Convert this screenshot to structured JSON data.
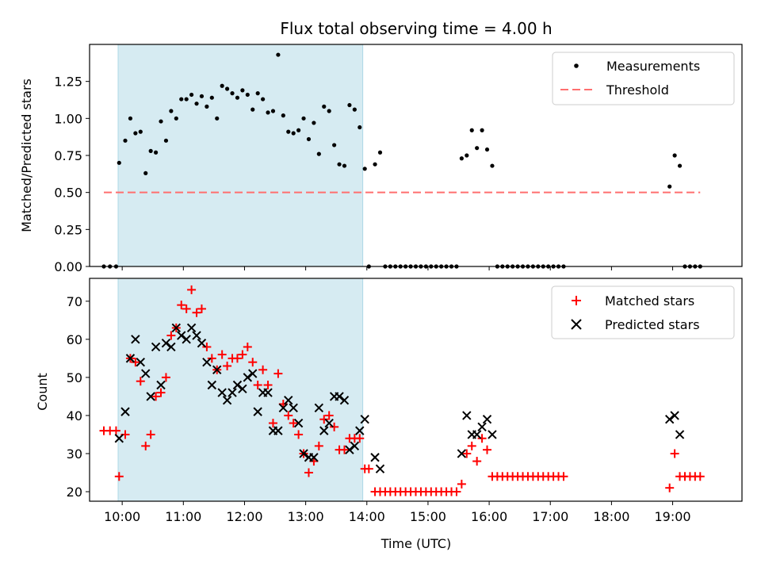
{
  "chart_data": [
    {
      "type": "scatter",
      "title": "Flux total observing time = 4.00 h",
      "xlabel": "",
      "ylabel": "Matched/Predicted stars",
      "xlim": [
        "09:28",
        "20:08"
      ],
      "ylim": [
        0,
        1.5
      ],
      "grid": false,
      "legend": {
        "placement": "top-right",
        "entries": [
          "Measurements",
          "Threshold"
        ]
      },
      "shaded_interval": {
        "start": "09:56",
        "end": "13:56",
        "color": "#add8e6"
      },
      "yticks": [
        "0.00",
        "0.25",
        "0.50",
        "0.75",
        "1.00",
        "1.25"
      ],
      "threshold": {
        "name": "Threshold",
        "y": 0.5,
        "x": [
          "09:42",
          "19:27"
        ],
        "color": "#ff6f6f"
      },
      "series": [
        {
          "name": "Measurements",
          "color": "#000000",
          "marker": "dot",
          "points": [
            [
              "09:42",
              0
            ],
            [
              "09:48",
              0
            ],
            [
              "09:54",
              0
            ],
            [
              "09:57",
              0.7
            ],
            [
              "10:03",
              0.85
            ],
            [
              "10:08",
              1.0
            ],
            [
              "10:13",
              0.9
            ],
            [
              "10:18",
              0.91
            ],
            [
              "10:23",
              0.63
            ],
            [
              "10:28",
              0.78
            ],
            [
              "10:33",
              0.77
            ],
            [
              "10:38",
              0.98
            ],
            [
              "10:43",
              0.85
            ],
            [
              "10:48",
              1.05
            ],
            [
              "10:53",
              1.0
            ],
            [
              "10:58",
              1.13
            ],
            [
              "11:03",
              1.13
            ],
            [
              "11:08",
              1.16
            ],
            [
              "11:13",
              1.1
            ],
            [
              "11:18",
              1.15
            ],
            [
              "11:23",
              1.08
            ],
            [
              "11:28",
              1.14
            ],
            [
              "11:33",
              1.0
            ],
            [
              "11:38",
              1.22
            ],
            [
              "11:43",
              1.2
            ],
            [
              "11:48",
              1.17
            ],
            [
              "11:53",
              1.14
            ],
            [
              "11:58",
              1.19
            ],
            [
              "12:03",
              1.16
            ],
            [
              "12:08",
              1.06
            ],
            [
              "12:13",
              1.17
            ],
            [
              "12:18",
              1.13
            ],
            [
              "12:23",
              1.04
            ],
            [
              "12:28",
              1.05
            ],
            [
              "12:33",
              1.43
            ],
            [
              "12:38",
              1.02
            ],
            [
              "12:43",
              0.91
            ],
            [
              "12:48",
              0.9
            ],
            [
              "12:53",
              0.92
            ],
            [
              "12:58",
              1.0
            ],
            [
              "13:03",
              0.86
            ],
            [
              "13:08",
              0.97
            ],
            [
              "13:13",
              0.76
            ],
            [
              "13:18",
              1.08
            ],
            [
              "13:23",
              1.05
            ],
            [
              "13:28",
              0.82
            ],
            [
              "13:33",
              0.69
            ],
            [
              "13:38",
              0.68
            ],
            [
              "13:43",
              1.09
            ],
            [
              "13:48",
              1.06
            ],
            [
              "13:53",
              0.94
            ],
            [
              "13:58",
              0.66
            ],
            [
              "14:02",
              0
            ],
            [
              "14:08",
              0.69
            ],
            [
              "14:13",
              0.77
            ],
            [
              "14:18",
              0
            ],
            [
              "14:23",
              0
            ],
            [
              "14:28",
              0
            ],
            [
              "14:33",
              0
            ],
            [
              "14:38",
              0
            ],
            [
              "14:43",
              0
            ],
            [
              "14:48",
              0
            ],
            [
              "14:53",
              0
            ],
            [
              "14:58",
              0
            ],
            [
              "15:03",
              0
            ],
            [
              "15:08",
              0
            ],
            [
              "15:13",
              0
            ],
            [
              "15:18",
              0
            ],
            [
              "15:23",
              0
            ],
            [
              "15:28",
              0
            ],
            [
              "15:33",
              0.73
            ],
            [
              "15:38",
              0.75
            ],
            [
              "15:43",
              0.92
            ],
            [
              "15:48",
              0.8
            ],
            [
              "15:53",
              0.92
            ],
            [
              "15:58",
              0.79
            ],
            [
              "16:03",
              0.68
            ],
            [
              "16:08",
              0
            ],
            [
              "16:13",
              0
            ],
            [
              "16:18",
              0
            ],
            [
              "16:23",
              0
            ],
            [
              "16:28",
              0
            ],
            [
              "16:33",
              0
            ],
            [
              "16:38",
              0
            ],
            [
              "16:43",
              0
            ],
            [
              "16:48",
              0
            ],
            [
              "16:53",
              0
            ],
            [
              "16:58",
              0
            ],
            [
              "17:03",
              0
            ],
            [
              "17:08",
              0
            ],
            [
              "17:13",
              0
            ],
            [
              "18:57",
              0.54
            ],
            [
              "19:02",
              0.75
            ],
            [
              "19:07",
              0.68
            ],
            [
              "19:12",
              0
            ],
            [
              "19:17",
              0
            ],
            [
              "19:22",
              0
            ],
            [
              "19:27",
              0
            ]
          ]
        }
      ]
    },
    {
      "type": "scatter",
      "title": "",
      "xlabel": "Time (UTC)",
      "ylabel": "Count",
      "xlim": [
        "09:28",
        "20:08"
      ],
      "ylim": [
        17.5,
        76
      ],
      "grid": false,
      "legend": {
        "placement": "top-right",
        "entries": [
          "Matched stars",
          "Predicted stars"
        ]
      },
      "shaded_interval": {
        "start": "09:56",
        "end": "13:56",
        "color": "#add8e6"
      },
      "xticks": [
        "10:00",
        "11:00",
        "12:00",
        "13:00",
        "14:00",
        "15:00",
        "16:00",
        "17:00",
        "18:00",
        "19:00"
      ],
      "yticks": [
        "20",
        "30",
        "40",
        "50",
        "60",
        "70"
      ],
      "series": [
        {
          "name": "Matched stars",
          "color": "#ff0000",
          "marker": "plus",
          "points": [
            [
              "09:42",
              36
            ],
            [
              "09:48",
              36
            ],
            [
              "09:54",
              36
            ],
            [
              "09:57",
              24
            ],
            [
              "10:03",
              35
            ],
            [
              "10:08",
              55
            ],
            [
              "10:13",
              54
            ],
            [
              "10:18",
              49
            ],
            [
              "10:23",
              32
            ],
            [
              "10:28",
              35
            ],
            [
              "10:33",
              45
            ],
            [
              "10:38",
              46
            ],
            [
              "10:43",
              50
            ],
            [
              "10:48",
              61
            ],
            [
              "10:53",
              63
            ],
            [
              "10:58",
              69
            ],
            [
              "11:03",
              68
            ],
            [
              "11:08",
              73
            ],
            [
              "11:13",
              67
            ],
            [
              "11:18",
              68
            ],
            [
              "11:23",
              58
            ],
            [
              "11:28",
              55
            ],
            [
              "11:33",
              52
            ],
            [
              "11:38",
              56
            ],
            [
              "11:43",
              53
            ],
            [
              "11:48",
              55
            ],
            [
              "11:53",
              55
            ],
            [
              "11:58",
              56
            ],
            [
              "12:03",
              58
            ],
            [
              "12:08",
              54
            ],
            [
              "12:13",
              48
            ],
            [
              "12:18",
              52
            ],
            [
              "12:23",
              48
            ],
            [
              "12:28",
              38
            ],
            [
              "12:33",
              51
            ],
            [
              "12:38",
              43
            ],
            [
              "12:43",
              40
            ],
            [
              "12:48",
              38
            ],
            [
              "12:53",
              35
            ],
            [
              "12:58",
              30
            ],
            [
              "13:03",
              25
            ],
            [
              "13:08",
              28
            ],
            [
              "13:13",
              32
            ],
            [
              "13:18",
              39
            ],
            [
              "13:23",
              40
            ],
            [
              "13:28",
              37
            ],
            [
              "13:33",
              31
            ],
            [
              "13:38",
              31
            ],
            [
              "13:43",
              34
            ],
            [
              "13:48",
              34
            ],
            [
              "13:53",
              34
            ],
            [
              "13:58",
              26
            ],
            [
              "14:02",
              26
            ],
            [
              "14:08",
              20
            ],
            [
              "14:13",
              20
            ],
            [
              "14:18",
              20
            ],
            [
              "14:23",
              20
            ],
            [
              "14:28",
              20
            ],
            [
              "14:33",
              20
            ],
            [
              "14:38",
              20
            ],
            [
              "14:43",
              20
            ],
            [
              "14:48",
              20
            ],
            [
              "14:53",
              20
            ],
            [
              "14:58",
              20
            ],
            [
              "15:03",
              20
            ],
            [
              "15:08",
              20
            ],
            [
              "15:13",
              20
            ],
            [
              "15:18",
              20
            ],
            [
              "15:23",
              20
            ],
            [
              "15:28",
              20
            ],
            [
              "15:33",
              22
            ],
            [
              "15:38",
              30
            ],
            [
              "15:43",
              32
            ],
            [
              "15:48",
              28
            ],
            [
              "15:53",
              34
            ],
            [
              "15:58",
              31
            ],
            [
              "16:03",
              24
            ],
            [
              "16:08",
              24
            ],
            [
              "16:13",
              24
            ],
            [
              "16:18",
              24
            ],
            [
              "16:23",
              24
            ],
            [
              "16:28",
              24
            ],
            [
              "16:33",
              24
            ],
            [
              "16:38",
              24
            ],
            [
              "16:43",
              24
            ],
            [
              "16:48",
              24
            ],
            [
              "16:53",
              24
            ],
            [
              "16:58",
              24
            ],
            [
              "17:03",
              24
            ],
            [
              "17:08",
              24
            ],
            [
              "17:13",
              24
            ],
            [
              "18:57",
              21
            ],
            [
              "19:02",
              30
            ],
            [
              "19:07",
              24
            ],
            [
              "19:12",
              24
            ],
            [
              "19:17",
              24
            ],
            [
              "19:22",
              24
            ],
            [
              "19:27",
              24
            ]
          ]
        },
        {
          "name": "Predicted stars",
          "color": "#000000",
          "marker": "x",
          "points": [
            [
              "09:57",
              34
            ],
            [
              "10:03",
              41
            ],
            [
              "10:08",
              55
            ],
            [
              "10:13",
              60
            ],
            [
              "10:18",
              54
            ],
            [
              "10:23",
              51
            ],
            [
              "10:28",
              45
            ],
            [
              "10:33",
              58
            ],
            [
              "10:38",
              48
            ],
            [
              "10:43",
              59
            ],
            [
              "10:48",
              58
            ],
            [
              "10:53",
              63
            ],
            [
              "10:58",
              61
            ],
            [
              "11:03",
              60
            ],
            [
              "11:08",
              63
            ],
            [
              "11:13",
              61
            ],
            [
              "11:18",
              59
            ],
            [
              "11:23",
              54
            ],
            [
              "11:28",
              48
            ],
            [
              "11:33",
              52
            ],
            [
              "11:38",
              46
            ],
            [
              "11:43",
              44
            ],
            [
              "11:48",
              46
            ],
            [
              "11:53",
              48
            ],
            [
              "11:58",
              47
            ],
            [
              "12:03",
              50
            ],
            [
              "12:08",
              51
            ],
            [
              "12:13",
              41
            ],
            [
              "12:18",
              46
            ],
            [
              "12:23",
              46
            ],
            [
              "12:28",
              36
            ],
            [
              "12:33",
              36
            ],
            [
              "12:38",
              42
            ],
            [
              "12:43",
              44
            ],
            [
              "12:48",
              42
            ],
            [
              "12:53",
              38
            ],
            [
              "12:58",
              30
            ],
            [
              "13:03",
              29
            ],
            [
              "13:08",
              29
            ],
            [
              "13:13",
              42
            ],
            [
              "13:18",
              36
            ],
            [
              "13:23",
              38
            ],
            [
              "13:28",
              45
            ],
            [
              "13:33",
              45
            ],
            [
              "13:38",
              44
            ],
            [
              "13:43",
              31
            ],
            [
              "13:48",
              32
            ],
            [
              "13:53",
              36
            ],
            [
              "13:58",
              39
            ],
            [
              "14:08",
              29
            ],
            [
              "14:13",
              26
            ],
            [
              "15:33",
              30
            ],
            [
              "15:38",
              40
            ],
            [
              "15:43",
              35
            ],
            [
              "15:48",
              35
            ],
            [
              "15:53",
              37
            ],
            [
              "15:58",
              39
            ],
            [
              "16:03",
              35
            ],
            [
              "18:57",
              39
            ],
            [
              "19:02",
              40
            ],
            [
              "19:07",
              35
            ]
          ]
        }
      ]
    }
  ]
}
